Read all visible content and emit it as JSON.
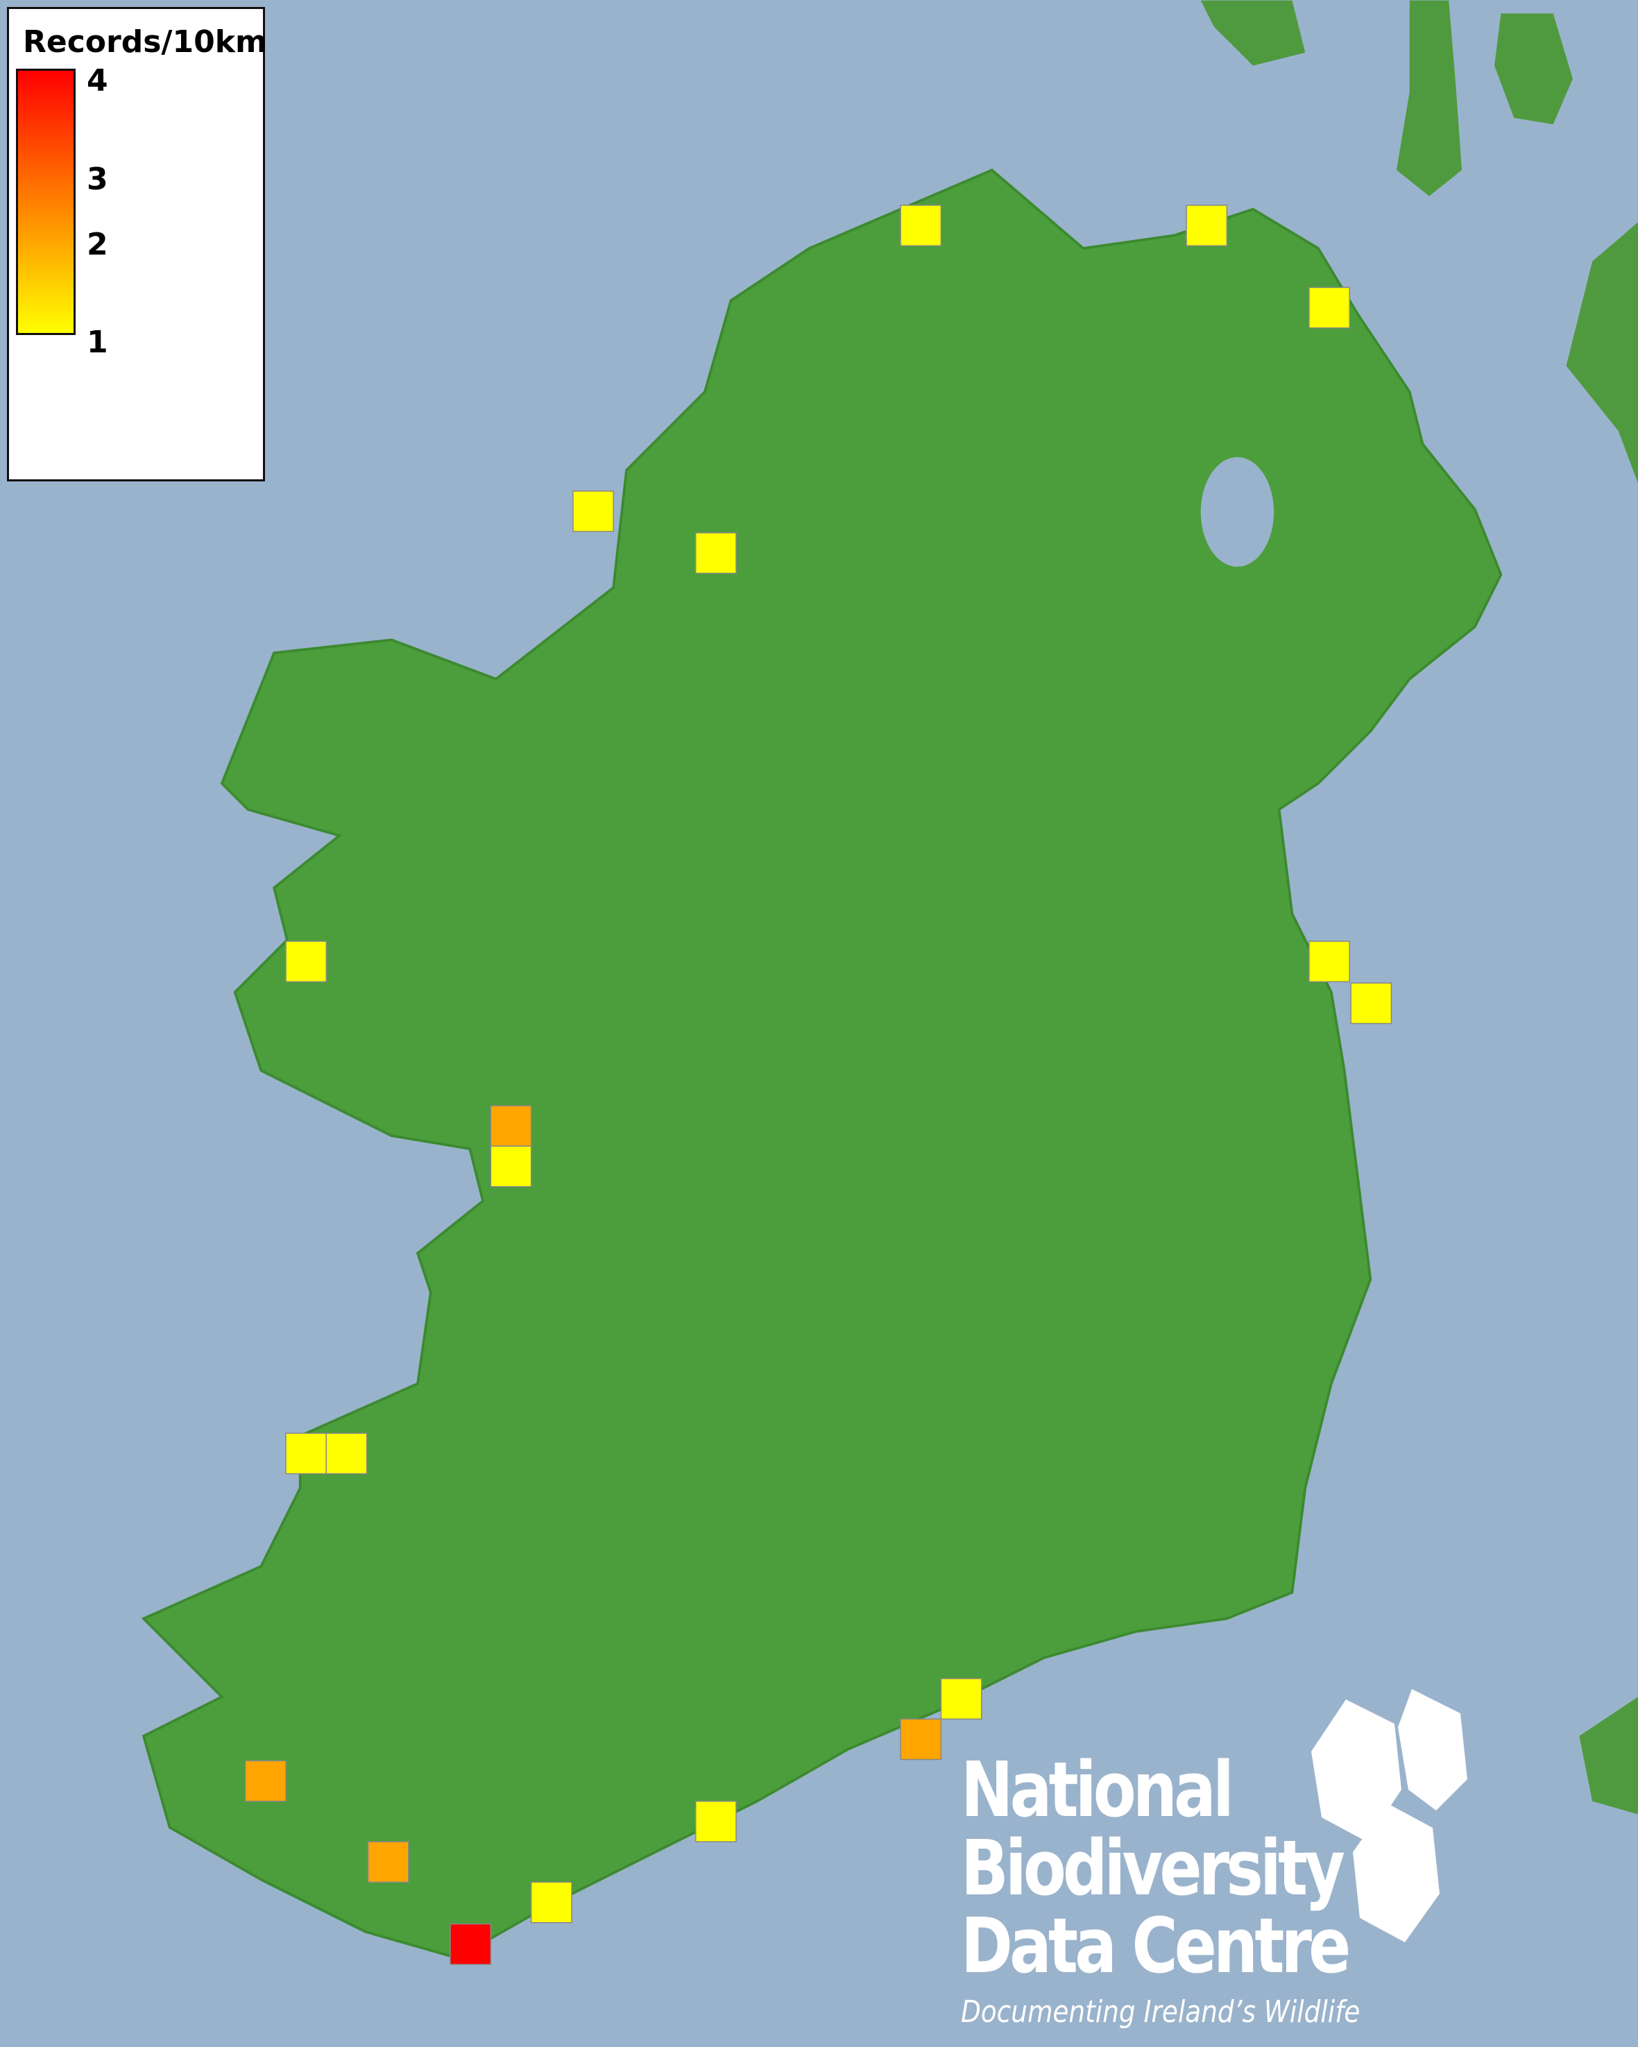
{
  "legend": {
    "title": "Records/10km",
    "ticks": [
      "4",
      "3",
      "2",
      "1"
    ],
    "range": [
      1,
      4
    ],
    "colors": {
      "low": "#ffff00",
      "mid": "#ffa500",
      "high": "#ff0000"
    }
  },
  "map": {
    "sea_color": "#9ab3cc",
    "land_color": "#4c9e3c",
    "records": [
      1,
      1,
      1,
      1,
      1,
      1,
      1,
      1,
      2,
      1,
      1,
      1,
      1,
      2,
      2,
      1,
      2,
      1,
      4
    ]
  },
  "logo": {
    "line1": "National",
    "line2": "Biodiversity",
    "line3": "Data Centre",
    "tagline": "Documenting Ireland’s Wildlife"
  }
}
